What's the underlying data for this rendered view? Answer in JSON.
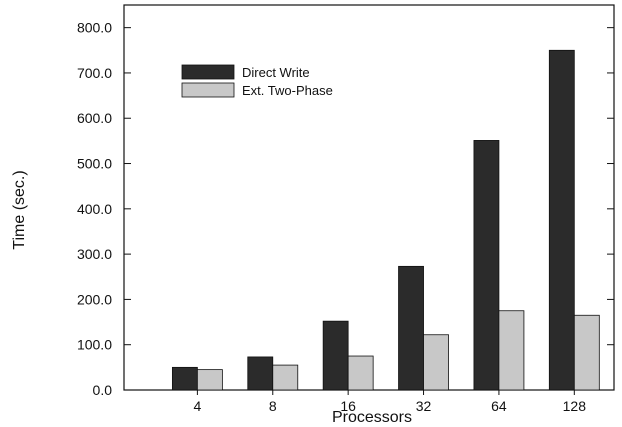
{
  "chart_data": {
    "type": "bar",
    "title": "",
    "xlabel": "Processors",
    "ylabel": "Time (sec.)",
    "categories": [
      "4",
      "8",
      "16",
      "32",
      "64",
      "128"
    ],
    "series": [
      {
        "name": "Direct Write",
        "values": [
          50,
          73,
          152,
          273,
          551,
          750
        ],
        "color": "#2b2b2b"
      },
      {
        "name": "Ext. Two-Phase",
        "values": [
          45,
          55,
          75,
          122,
          175,
          165
        ],
        "color": "#c8c8c8"
      }
    ],
    "ylim": [
      0,
      850
    ],
    "yticks": [
      0,
      100,
      200,
      300,
      400,
      500,
      600,
      700,
      800
    ],
    "ytick_labels": [
      "0.0",
      "100.0",
      "200.0",
      "300.0",
      "400.0",
      "500.0",
      "600.0",
      "700.0",
      "800.0"
    ],
    "grid": false,
    "legend_position": "top-left"
  }
}
